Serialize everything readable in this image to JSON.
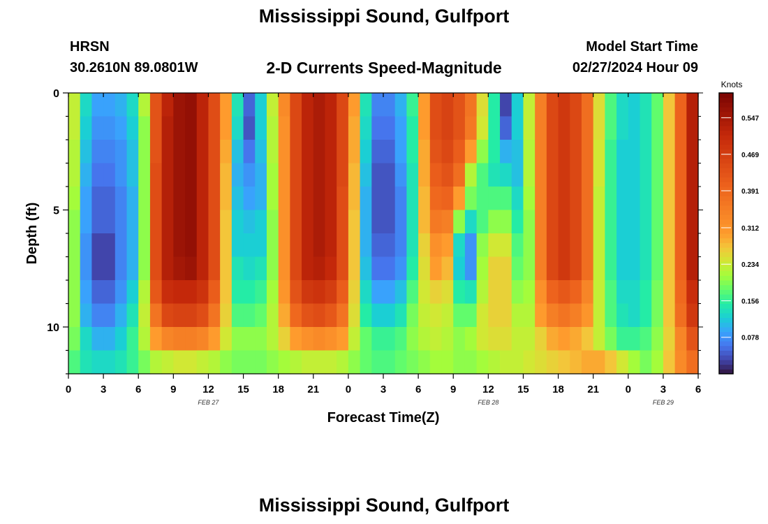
{
  "page": {
    "title": "Mississippi Sound, Gulfport",
    "bottom_title": "Mississippi Sound, Gulfport",
    "station_id": "HRSN",
    "station_coords": "30.2610N  89.0801W",
    "subtitle": "2-D Currents Speed-Magnitude",
    "model_start_label": "Model Start Time",
    "model_start_value": "02/27/2024 Hour 09"
  },
  "chart_data": {
    "type": "heatmap",
    "title": "Mississippi Sound, Gulfport",
    "subtitle": "2-D Currents Speed-Magnitude",
    "xlabel": "Forecast Time(Z)",
    "ylabel": "Depth (ft)",
    "xlim": [
      0,
      54
    ],
    "ylim": [
      12,
      0
    ],
    "x_ticks": [
      0,
      3,
      6,
      9,
      12,
      15,
      18,
      21,
      24,
      27,
      30,
      33,
      36,
      39,
      42,
      45,
      48,
      51,
      54
    ],
    "x_tick_labels": [
      "0",
      "3",
      "6",
      "9",
      "12",
      "15",
      "18",
      "21",
      "0",
      "3",
      "6",
      "9",
      "12",
      "15",
      "18",
      "21",
      "0",
      "3",
      "6"
    ],
    "date_labels": [
      {
        "label": "FEB 27",
        "x": 12
      },
      {
        "label": "FEB 28",
        "x": 36
      },
      {
        "label": "FEB 29",
        "x": 51
      }
    ],
    "y_ticks": [
      0,
      5,
      10
    ],
    "y_tick_labels": [
      "0",
      "5",
      "10"
    ],
    "colorbar": {
      "label": "Knots",
      "vmin": 0,
      "vmax": 0.6,
      "ticks": [
        0.547,
        0.469,
        0.391,
        0.312,
        0.234,
        0.156,
        0.078
      ],
      "tick_labels": [
        "0.547",
        "0.469",
        "0.391",
        "0.312",
        "0.234",
        "0.156",
        "0.078"
      ],
      "colormap": "turbo"
    },
    "depths_ft": [
      0.5,
      1.5,
      2.5,
      3.5,
      4.5,
      5.5,
      6.5,
      7.5,
      8.5,
      9.5,
      10.5,
      11.5
    ],
    "times_hr": [
      0.5,
      1.5,
      2.5,
      3.5,
      4.5,
      5.5,
      6.5,
      7.5,
      8.5,
      9.5,
      10.5,
      11.5,
      12.5,
      13.5,
      14.5,
      15.5,
      16.5,
      17.5,
      18.5,
      19.5,
      20.5,
      21.5,
      22.5,
      23.5,
      24.5,
      25.5,
      26.5,
      27.5,
      28.5,
      29.5,
      30.5,
      31.5,
      32.5,
      33.5,
      34.5,
      35.5,
      36.5,
      37.5,
      38.5,
      39.5,
      40.5,
      41.5,
      42.5,
      43.5,
      44.5,
      45.5,
      46.5,
      47.5,
      48.5,
      49.5,
      50.5,
      51.5,
      52.5,
      53.5
    ],
    "speed_knots": [
      [
        0.23,
        0.13,
        0.09,
        0.09,
        0.1,
        0.13,
        0.22,
        0.43,
        0.52,
        0.56,
        0.57,
        0.52,
        0.44,
        0.3,
        0.14,
        0.05,
        0.12,
        0.23,
        0.33,
        0.45,
        0.52,
        0.54,
        0.52,
        0.45,
        0.3,
        0.14,
        0.07,
        0.07,
        0.1,
        0.16,
        0.3,
        0.44,
        0.46,
        0.43,
        0.37,
        0.25,
        0.15,
        0.03,
        0.12,
        0.23,
        0.35,
        0.45,
        0.48,
        0.45,
        0.38,
        0.25,
        0.17,
        0.13,
        0.12,
        0.14,
        0.18,
        0.27,
        0.4,
        0.53
      ],
      [
        0.23,
        0.12,
        0.08,
        0.08,
        0.09,
        0.12,
        0.2,
        0.43,
        0.53,
        0.56,
        0.57,
        0.52,
        0.44,
        0.3,
        0.13,
        0.04,
        0.12,
        0.22,
        0.32,
        0.45,
        0.52,
        0.54,
        0.52,
        0.45,
        0.29,
        0.13,
        0.06,
        0.06,
        0.09,
        0.15,
        0.3,
        0.44,
        0.46,
        0.43,
        0.36,
        0.24,
        0.15,
        0.05,
        0.12,
        0.23,
        0.35,
        0.45,
        0.48,
        0.45,
        0.38,
        0.25,
        0.17,
        0.13,
        0.12,
        0.14,
        0.18,
        0.27,
        0.4,
        0.53
      ],
      [
        0.22,
        0.11,
        0.07,
        0.07,
        0.08,
        0.11,
        0.2,
        0.43,
        0.53,
        0.56,
        0.57,
        0.52,
        0.44,
        0.29,
        0.11,
        0.06,
        0.11,
        0.22,
        0.32,
        0.45,
        0.52,
        0.54,
        0.52,
        0.45,
        0.29,
        0.12,
        0.05,
        0.05,
        0.09,
        0.15,
        0.29,
        0.43,
        0.45,
        0.41,
        0.3,
        0.2,
        0.15,
        0.1,
        0.11,
        0.22,
        0.35,
        0.45,
        0.48,
        0.45,
        0.38,
        0.24,
        0.16,
        0.12,
        0.12,
        0.14,
        0.18,
        0.27,
        0.4,
        0.53
      ],
      [
        0.22,
        0.1,
        0.06,
        0.06,
        0.08,
        0.11,
        0.2,
        0.44,
        0.53,
        0.56,
        0.57,
        0.52,
        0.44,
        0.28,
        0.1,
        0.08,
        0.1,
        0.21,
        0.32,
        0.45,
        0.52,
        0.54,
        0.52,
        0.45,
        0.28,
        0.11,
        0.04,
        0.04,
        0.08,
        0.14,
        0.29,
        0.41,
        0.43,
        0.38,
        0.22,
        0.17,
        0.14,
        0.13,
        0.11,
        0.22,
        0.35,
        0.45,
        0.48,
        0.45,
        0.38,
        0.24,
        0.16,
        0.12,
        0.12,
        0.14,
        0.18,
        0.27,
        0.4,
        0.53
      ],
      [
        0.21,
        0.09,
        0.05,
        0.05,
        0.07,
        0.1,
        0.2,
        0.44,
        0.53,
        0.56,
        0.57,
        0.52,
        0.44,
        0.28,
        0.11,
        0.09,
        0.1,
        0.21,
        0.32,
        0.45,
        0.52,
        0.54,
        0.52,
        0.44,
        0.28,
        0.1,
        0.04,
        0.04,
        0.07,
        0.14,
        0.28,
        0.39,
        0.4,
        0.3,
        0.19,
        0.17,
        0.17,
        0.17,
        0.13,
        0.21,
        0.35,
        0.45,
        0.48,
        0.45,
        0.38,
        0.23,
        0.16,
        0.12,
        0.12,
        0.14,
        0.18,
        0.27,
        0.4,
        0.53
      ],
      [
        0.2,
        0.09,
        0.05,
        0.05,
        0.07,
        0.1,
        0.2,
        0.44,
        0.53,
        0.56,
        0.57,
        0.52,
        0.44,
        0.27,
        0.12,
        0.11,
        0.12,
        0.2,
        0.32,
        0.45,
        0.52,
        0.54,
        0.52,
        0.44,
        0.27,
        0.1,
        0.04,
        0.04,
        0.07,
        0.14,
        0.28,
        0.36,
        0.35,
        0.2,
        0.13,
        0.17,
        0.2,
        0.2,
        0.15,
        0.2,
        0.35,
        0.45,
        0.48,
        0.45,
        0.38,
        0.23,
        0.16,
        0.12,
        0.12,
        0.14,
        0.18,
        0.27,
        0.4,
        0.53
      ],
      [
        0.2,
        0.08,
        0.03,
        0.03,
        0.07,
        0.1,
        0.2,
        0.44,
        0.53,
        0.56,
        0.57,
        0.52,
        0.44,
        0.27,
        0.12,
        0.12,
        0.12,
        0.2,
        0.32,
        0.45,
        0.52,
        0.54,
        0.52,
        0.44,
        0.27,
        0.1,
        0.05,
        0.05,
        0.07,
        0.14,
        0.26,
        0.32,
        0.3,
        0.13,
        0.08,
        0.2,
        0.24,
        0.24,
        0.17,
        0.2,
        0.35,
        0.45,
        0.48,
        0.45,
        0.38,
        0.23,
        0.16,
        0.12,
        0.12,
        0.14,
        0.18,
        0.27,
        0.4,
        0.53
      ],
      [
        0.2,
        0.08,
        0.03,
        0.03,
        0.07,
        0.1,
        0.2,
        0.44,
        0.53,
        0.55,
        0.56,
        0.52,
        0.44,
        0.27,
        0.14,
        0.13,
        0.14,
        0.2,
        0.32,
        0.45,
        0.52,
        0.53,
        0.51,
        0.44,
        0.27,
        0.11,
        0.06,
        0.06,
        0.08,
        0.15,
        0.25,
        0.3,
        0.28,
        0.12,
        0.08,
        0.21,
        0.26,
        0.26,
        0.18,
        0.2,
        0.35,
        0.45,
        0.48,
        0.45,
        0.38,
        0.23,
        0.16,
        0.12,
        0.12,
        0.14,
        0.18,
        0.27,
        0.4,
        0.53
      ],
      [
        0.2,
        0.09,
        0.05,
        0.05,
        0.08,
        0.12,
        0.22,
        0.42,
        0.5,
        0.51,
        0.51,
        0.49,
        0.41,
        0.27,
        0.15,
        0.15,
        0.16,
        0.21,
        0.31,
        0.43,
        0.48,
        0.49,
        0.47,
        0.41,
        0.26,
        0.13,
        0.09,
        0.09,
        0.11,
        0.17,
        0.24,
        0.26,
        0.25,
        0.15,
        0.14,
        0.22,
        0.26,
        0.26,
        0.2,
        0.21,
        0.32,
        0.4,
        0.42,
        0.4,
        0.34,
        0.23,
        0.17,
        0.13,
        0.13,
        0.15,
        0.19,
        0.27,
        0.39,
        0.5
      ],
      [
        0.2,
        0.1,
        0.07,
        0.07,
        0.1,
        0.14,
        0.23,
        0.37,
        0.45,
        0.46,
        0.46,
        0.44,
        0.37,
        0.26,
        0.17,
        0.17,
        0.18,
        0.22,
        0.29,
        0.39,
        0.43,
        0.44,
        0.42,
        0.37,
        0.25,
        0.15,
        0.12,
        0.12,
        0.14,
        0.19,
        0.23,
        0.24,
        0.23,
        0.18,
        0.18,
        0.24,
        0.26,
        0.26,
        0.22,
        0.22,
        0.3,
        0.35,
        0.37,
        0.35,
        0.31,
        0.23,
        0.17,
        0.14,
        0.13,
        0.15,
        0.19,
        0.27,
        0.38,
        0.48
      ],
      [
        0.19,
        0.13,
        0.1,
        0.1,
        0.12,
        0.16,
        0.22,
        0.3,
        0.34,
        0.35,
        0.35,
        0.34,
        0.3,
        0.24,
        0.2,
        0.2,
        0.2,
        0.22,
        0.26,
        0.3,
        0.32,
        0.33,
        0.32,
        0.3,
        0.23,
        0.18,
        0.16,
        0.16,
        0.17,
        0.2,
        0.22,
        0.23,
        0.22,
        0.2,
        0.21,
        0.24,
        0.25,
        0.25,
        0.23,
        0.23,
        0.26,
        0.29,
        0.3,
        0.29,
        0.27,
        0.23,
        0.19,
        0.16,
        0.16,
        0.17,
        0.2,
        0.26,
        0.34,
        0.43
      ],
      [
        0.17,
        0.14,
        0.13,
        0.13,
        0.14,
        0.16,
        0.19,
        0.22,
        0.23,
        0.24,
        0.24,
        0.23,
        0.22,
        0.2,
        0.19,
        0.19,
        0.19,
        0.2,
        0.21,
        0.22,
        0.23,
        0.23,
        0.23,
        0.22,
        0.2,
        0.18,
        0.17,
        0.17,
        0.18,
        0.19,
        0.2,
        0.21,
        0.21,
        0.2,
        0.2,
        0.21,
        0.22,
        0.23,
        0.23,
        0.24,
        0.25,
        0.26,
        0.27,
        0.28,
        0.29,
        0.29,
        0.27,
        0.24,
        0.21,
        0.19,
        0.21,
        0.27,
        0.33,
        0.38
      ]
    ]
  }
}
